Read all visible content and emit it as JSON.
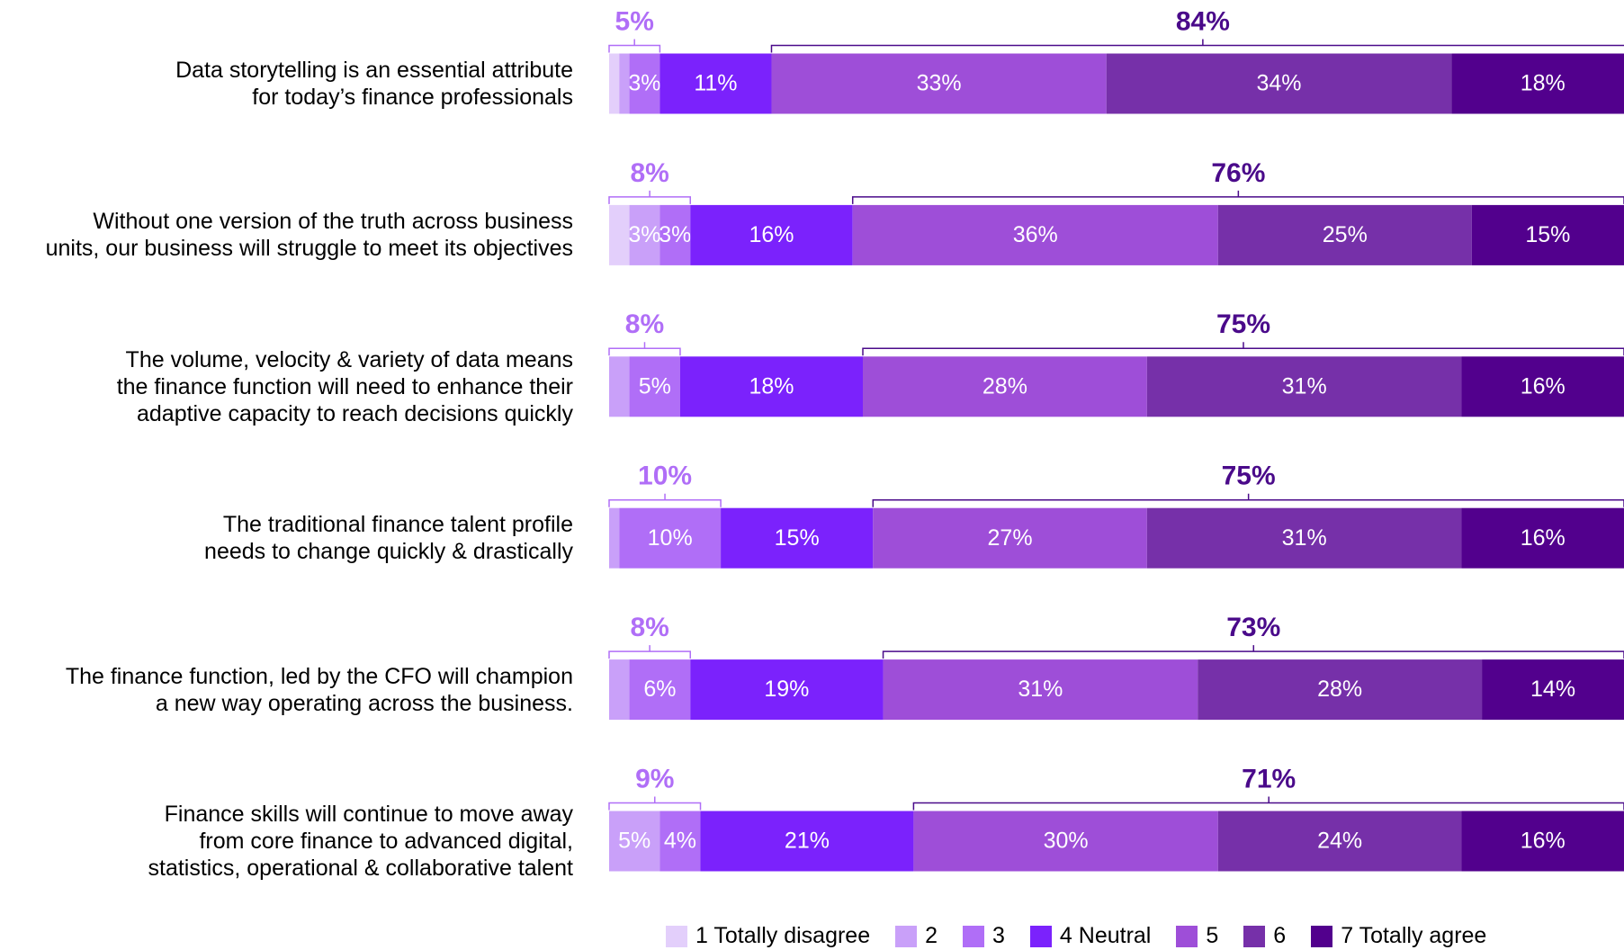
{
  "chart_data": {
    "type": "stacked-bar-horizontal",
    "categories": [
      "Data storytelling is an essential attribute\nfor today’s finance professionals",
      "Without one version of the truth across business\nunits, our business will struggle to meet its objectives",
      "The volume, velocity & variety of data means\nthe finance function will need to enhance their\nadaptive capacity to reach decisions quickly",
      "The traditional finance talent profile\nneeds to change quickly & drastically",
      "The finance function, led by the CFO will champion\na new way operating across the business.",
      "Finance skills will continue to move away\nfrom core finance to advanced digital,\nstatistics, operational & collaborative talent"
    ],
    "xlim": [
      0,
      100
    ],
    "series": [
      {
        "name": "1 Totally disagree",
        "color": "#e3cffb",
        "values": [
          1,
          2,
          0,
          0,
          0,
          0
        ],
        "value_labels": [
          null,
          null,
          null,
          null,
          null,
          null
        ]
      },
      {
        "name": "2",
        "color": "#c9a0f9",
        "values": [
          1,
          3,
          2,
          1,
          2,
          5
        ],
        "value_labels": [
          null,
          "3%",
          null,
          null,
          null,
          "5%"
        ]
      },
      {
        "name": "3",
        "color": "#b06ef7",
        "values": [
          3,
          3,
          5,
          10,
          6,
          4
        ],
        "value_labels": [
          "3%",
          "3%",
          "5%",
          "10%",
          "6%",
          "4%"
        ]
      },
      {
        "name": "4 Neutral",
        "color": "#7b22fc",
        "values": [
          11,
          16,
          18,
          15,
          19,
          21
        ],
        "value_labels": [
          "11%",
          "16%",
          "18%",
          "15%",
          "19%",
          "21%"
        ]
      },
      {
        "name": "5",
        "color": "#9e4ed8",
        "values": [
          33,
          36,
          28,
          27,
          31,
          30
        ],
        "value_labels": [
          "33%",
          "36%",
          "28%",
          "27%",
          "31%",
          "30%"
        ]
      },
      {
        "name": "6",
        "color": "#7630a9",
        "values": [
          34,
          25,
          31,
          31,
          28,
          24
        ],
        "value_labels": [
          "34%",
          "25%",
          "31%",
          "31%",
          "28%",
          "24%"
        ]
      },
      {
        "name": "7 Totally agree",
        "color": "#52008d",
        "values": [
          18,
          15,
          16,
          16,
          14,
          16
        ],
        "value_labels": [
          "18%",
          "15%",
          "16%",
          "16%",
          "14%",
          "16%"
        ]
      }
    ],
    "brackets": [
      {
        "color": "#b06ef7",
        "values": [
          5,
          8,
          8,
          10,
          8,
          9
        ],
        "value_labels": [
          "5%",
          "8%",
          "8%",
          "10%",
          "8%",
          "9%"
        ]
      },
      {
        "color": "#4a0a8a",
        "values": [
          84,
          76,
          75,
          75,
          73,
          71
        ],
        "value_labels": [
          "84%",
          "76%",
          "75%",
          "75%",
          "73%",
          "71%"
        ]
      }
    ]
  }
}
